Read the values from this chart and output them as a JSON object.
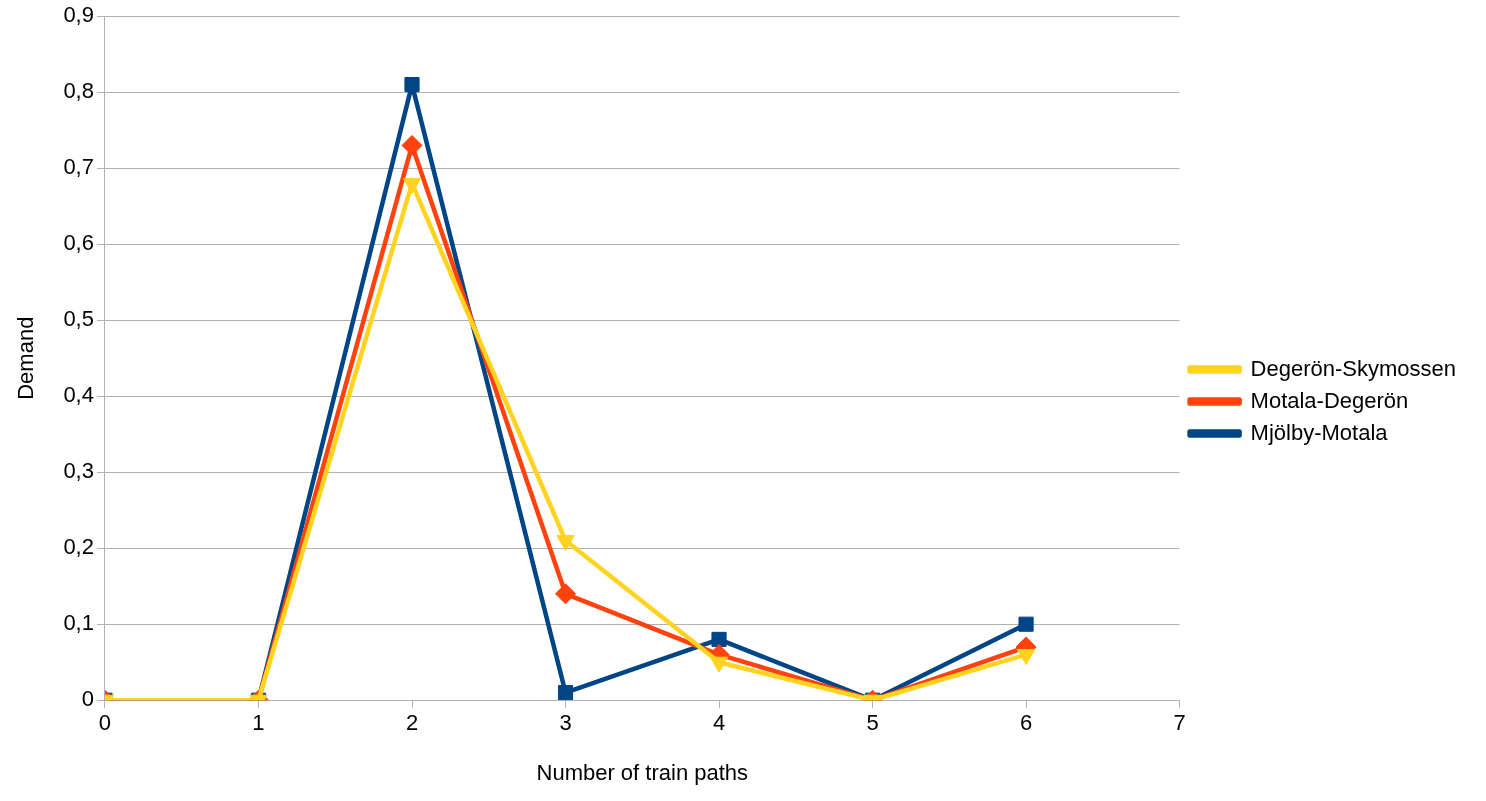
{
  "chart_data": {
    "type": "line",
    "xlabel": "Number of train paths",
    "ylabel": "Demand",
    "x": [
      0,
      1,
      2,
      3,
      4,
      5,
      6
    ],
    "xlim": [
      0,
      7
    ],
    "xticks": [
      0,
      1,
      2,
      3,
      4,
      5,
      6,
      7
    ],
    "ylim": [
      0,
      0.9
    ],
    "yticks": [
      0,
      {
        "value": 0.1,
        "label": "0,1"
      },
      {
        "value": 0.2,
        "label": "0,2"
      },
      {
        "value": 0.3,
        "label": "0,3"
      },
      {
        "value": 0.4,
        "label": "0,4"
      },
      {
        "value": 0.5,
        "label": "0,5"
      },
      {
        "value": 0.6,
        "label": "0,6"
      },
      {
        "value": 0.7,
        "label": "0,7"
      },
      {
        "value": 0.8,
        "label": "0,8"
      },
      {
        "value": 0.9,
        "label": "0,9"
      }
    ],
    "grid": "y",
    "legend": "right",
    "line_style": "solid",
    "series": [
      {
        "name": "Mjölby-Motala",
        "color": "#004586",
        "marker": "square",
        "values": [
          0,
          0,
          0.81,
          0.01,
          0.08,
          0,
          0.1
        ]
      },
      {
        "name": "Motala-Degerön",
        "color": "#ff420e",
        "marker": "diamond",
        "values": [
          0,
          0,
          0.73,
          0.14,
          0.06,
          0,
          0.07
        ]
      },
      {
        "name": "Degerön-Skymossen",
        "color": "#ffd320",
        "marker": "triangle",
        "values": [
          0,
          0,
          0.68,
          0.21,
          0.05,
          0,
          0.06
        ]
      }
    ]
  }
}
